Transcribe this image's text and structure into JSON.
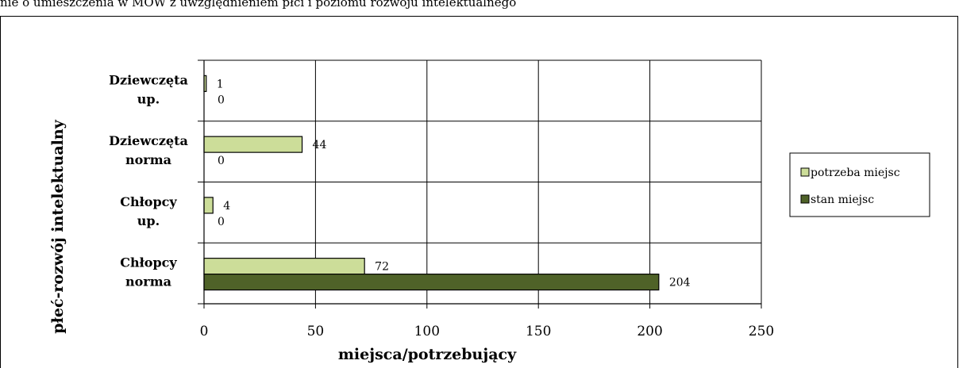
{
  "caption": "nie o umieszczenia w MOW z uwzględnieniem płci i poziomu rozwoju intelektualnego",
  "chart_data": {
    "type": "bar",
    "orientation": "horizontal",
    "xlabel": "miejsca/potrzebujący",
    "ylabel": "płeć-rozwój intelektualny",
    "xlim": [
      0,
      250
    ],
    "xticks": [
      0,
      50,
      100,
      150,
      200,
      250
    ],
    "grid": true,
    "legend_position": "right",
    "categories": [
      [
        "Dziewczęta",
        "up."
      ],
      [
        "Dziewczęta",
        "norma"
      ],
      [
        "Chłopcy",
        "up."
      ],
      [
        "Chłopcy",
        "norma"
      ]
    ],
    "series": [
      {
        "name": "potrzeba miejsc",
        "color": "#ccdd99",
        "values": [
          1,
          44,
          4,
          72
        ]
      },
      {
        "name": "stan miejsc",
        "color": "#4f6228",
        "values": [
          0,
          0,
          0,
          204
        ]
      }
    ]
  }
}
